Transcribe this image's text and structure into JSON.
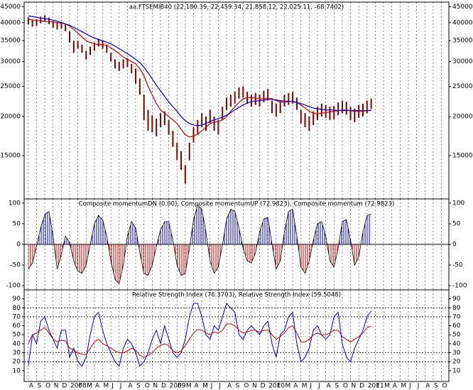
{
  "x_axis": {
    "xlim": [
      -0.5,
      50.9
    ],
    "xticks": [
      {
        "value": 0,
        "label": "A"
      },
      {
        "value": 1,
        "label": "S"
      },
      {
        "value": 2,
        "label": "O"
      },
      {
        "value": 3,
        "label": "N"
      },
      {
        "value": 4,
        "label": "D"
      },
      {
        "value": 5,
        "label": "2008"
      },
      {
        "value": 6,
        "label": "F"
      },
      {
        "value": 7,
        "label": "M"
      },
      {
        "value": 8,
        "label": "A"
      },
      {
        "value": 9,
        "label": "M"
      },
      {
        "value": 10,
        "label": "J"
      },
      {
        "value": 11,
        "label": "J"
      },
      {
        "value": 12,
        "label": "A"
      },
      {
        "value": 13,
        "label": "S"
      },
      {
        "value": 14,
        "label": "O"
      },
      {
        "value": 15,
        "label": "N"
      },
      {
        "value": 16,
        "label": "D"
      },
      {
        "value": 17,
        "label": "2009"
      },
      {
        "value": 18,
        "label": "F"
      },
      {
        "value": 19,
        "label": "M"
      },
      {
        "value": 20,
        "label": "A"
      },
      {
        "value": 21,
        "label": "M"
      },
      {
        "value": 22,
        "label": "J"
      },
      {
        "value": 23,
        "label": "J"
      },
      {
        "value": 24,
        "label": "A"
      },
      {
        "value": 25,
        "label": "S"
      },
      {
        "value": 26,
        "label": "O"
      },
      {
        "value": 27,
        "label": "N"
      },
      {
        "value": 28,
        "label": "D"
      },
      {
        "value": 29,
        "label": "2010"
      },
      {
        "value": 30,
        "label": "F"
      },
      {
        "value": 31,
        "label": "M"
      },
      {
        "value": 32,
        "label": "A"
      },
      {
        "value": 33,
        "label": "M"
      },
      {
        "value": 34,
        "label": "J"
      },
      {
        "value": 35,
        "label": "J"
      },
      {
        "value": 36,
        "label": "A"
      },
      {
        "value": 37,
        "label": "S"
      },
      {
        "value": 38,
        "label": "O"
      },
      {
        "value": 39,
        "label": "N"
      },
      {
        "value": 40,
        "label": "D"
      },
      {
        "value": 41,
        "label": "2011"
      },
      {
        "value": 42,
        "label": "F"
      },
      {
        "value": 43,
        "label": "M"
      },
      {
        "value": 44,
        "label": "A"
      },
      {
        "value": 45,
        "label": "M"
      },
      {
        "value": 46,
        "label": "J"
      },
      {
        "value": 47,
        "label": "J"
      },
      {
        "value": 48,
        "label": "A"
      },
      {
        "value": 49,
        "label": "S"
      },
      {
        "value": 50,
        "label": "O"
      }
    ],
    "x": [
      0,
      0.5,
      1,
      1.5,
      2,
      2.5,
      3,
      3.5,
      4,
      4.5,
      5,
      5.5,
      6,
      6.5,
      7,
      7.5,
      8,
      8.5,
      9,
      9.5,
      10,
      10.5,
      11,
      11.5,
      12,
      12.5,
      13,
      13.5,
      14,
      14.5,
      15,
      15.5,
      16,
      16.5,
      17,
      17.5,
      18,
      18.5,
      19,
      19.5,
      20,
      20.5,
      21,
      21.5,
      22,
      22.5,
      23,
      23.5,
      24,
      24.5,
      25,
      25.5,
      26,
      26.5,
      27,
      27.5,
      28,
      28.5,
      29,
      29.5,
      30,
      30.5,
      31,
      31.5,
      32,
      32.5,
      33,
      33.5,
      34,
      34.5,
      35,
      35.5,
      36,
      36.5,
      37,
      37.5,
      38,
      38.5,
      39,
      39.5,
      40,
      40.5,
      41,
      41.5
    ]
  },
  "chart_data": [
    {
      "type": "ohlc",
      "title": "aa.FTSEMIB40 (22,180.39, 22,459.34, 21,858.12, 22,025.11, -68.7402)",
      "log": true,
      "ylim": [
        10900,
        46500
      ],
      "yticks": [
        15000,
        20000,
        25000,
        30000,
        35000,
        40000,
        45000
      ],
      "color": "#800000",
      "high": [
        41500,
        40800,
        41000,
        41800,
        42200,
        41500,
        40500,
        40000,
        40200,
        39500,
        37500,
        35000,
        35000,
        34000,
        32500,
        33500,
        34500,
        35500,
        35000,
        34000,
        32000,
        30500,
        30000,
        30500,
        30800,
        29500,
        28500,
        26500,
        23500,
        21000,
        20200,
        19700,
        20500,
        20800,
        19500,
        18000,
        16500,
        15500,
        14000,
        16500,
        18500,
        19500,
        20500,
        20000,
        21000,
        20000,
        19500,
        21500,
        23000,
        23500,
        24000,
        24800,
        25000,
        24000,
        23500,
        23800,
        23500,
        24200,
        24500,
        22500,
        22000,
        22500,
        23500,
        23800,
        24000,
        23000,
        21000,
        20500,
        20000,
        20800,
        21500,
        22000,
        21800,
        21500,
        21600,
        22200,
        22500,
        22300,
        21500,
        21200,
        21800,
        22000,
        22500,
        22800
      ],
      "low": [
        39500,
        38800,
        39000,
        39800,
        40200,
        39500,
        38500,
        38000,
        38200,
        37500,
        34500,
        32000,
        33000,
        32000,
        30500,
        31500,
        32500,
        33500,
        33000,
        32000,
        30000,
        28500,
        28000,
        28500,
        28800,
        27500,
        25500,
        23500,
        19500,
        18000,
        17800,
        17300,
        18500,
        18800,
        17500,
        16000,
        14500,
        13500,
        12200,
        14500,
        16500,
        17500,
        18500,
        18000,
        19000,
        18000,
        17500,
        19500,
        21000,
        21500,
        22000,
        22800,
        23000,
        22000,
        21500,
        21800,
        21500,
        22200,
        22500,
        20500,
        20000,
        20500,
        21500,
        21800,
        22000,
        21000,
        19000,
        18500,
        18000,
        18800,
        19500,
        20000,
        19800,
        19500,
        19600,
        20200,
        20500,
        20300,
        19500,
        19200,
        19800,
        20000,
        20500,
        21200
      ],
      "overlays": [
        {
          "color": "#cc0000",
          "values": [
            41000,
            40800,
            40600,
            40500,
            40400,
            40300,
            40200,
            40000,
            39800,
            39600,
            39000,
            38000,
            37000,
            36000,
            35000,
            34500,
            34200,
            34000,
            34000,
            33800,
            33200,
            32500,
            31800,
            31000,
            30500,
            30000,
            29500,
            28500,
            27000,
            25000,
            23500,
            22000,
            21000,
            20500,
            20000,
            19500,
            19000,
            18200,
            17500,
            17200,
            17300,
            17600,
            18000,
            18500,
            19000,
            19200,
            19300,
            19500,
            20000,
            20800,
            21500,
            22200,
            22800,
            23000,
            23000,
            22900,
            22800,
            22800,
            22900,
            22800,
            22500,
            22300,
            22200,
            22300,
            22400,
            22200,
            21800,
            21300,
            20800,
            20500,
            20400,
            20500,
            20600,
            20700,
            20800,
            20900,
            21000,
            21000,
            20900,
            20800,
            20800,
            20800,
            20900,
            21000
          ]
        },
        {
          "color": "#0000cc",
          "values": [
            42000,
            41800,
            41600,
            41400,
            41200,
            41000,
            40700,
            40400,
            40000,
            39600,
            39200,
            38600,
            38000,
            37400,
            36800,
            36200,
            35700,
            35300,
            35000,
            34600,
            34200,
            33600,
            33000,
            32400,
            31800,
            31200,
            30500,
            29800,
            28800,
            27600,
            26400,
            25200,
            24200,
            23200,
            22300,
            21500,
            20800,
            20000,
            19400,
            19000,
            18800,
            18700,
            18800,
            19000,
            19300,
            19500,
            19700,
            19900,
            20200,
            20600,
            21000,
            21400,
            21800,
            22100,
            22300,
            22400,
            22500,
            22600,
            22700,
            22700,
            22600,
            22500,
            22400,
            22400,
            22300,
            22200,
            22000,
            21800,
            21500,
            21300,
            21200,
            21100,
            21000,
            21000,
            21000,
            20900,
            20900,
            20900,
            20900,
            20900,
            20900,
            20900,
            20900,
            20900
          ]
        }
      ]
    },
    {
      "type": "area",
      "title": "Composite momentumDN (0.00), Composite momentumUP (72.9823), Composite momentum (72.9823)",
      "ylim": [
        -110,
        110
      ],
      "yticks": [
        -100,
        -50,
        0,
        50,
        100
      ],
      "up_color": "#0000cc",
      "down_color": "#cc0000",
      "line_color": "#000000",
      "values": [
        -60,
        -45,
        -5,
        40,
        72,
        80,
        20,
        -60,
        -25,
        20,
        5,
        -40,
        -65,
        -70,
        -50,
        0,
        50,
        70,
        60,
        20,
        -40,
        -85,
        -95,
        -50,
        20,
        55,
        40,
        -20,
        -70,
        -75,
        -50,
        -5,
        35,
        55,
        55,
        10,
        -50,
        -75,
        -70,
        -10,
        60,
        95,
        85,
        30,
        -40,
        -70,
        -55,
        0,
        60,
        85,
        80,
        40,
        -10,
        -40,
        -45,
        -20,
        30,
        62,
        65,
        0,
        -60,
        -40,
        30,
        80,
        85,
        20,
        -55,
        -70,
        -40,
        10,
        50,
        55,
        20,
        -40,
        -55,
        -10,
        55,
        60,
        10,
        -50,
        -30,
        30,
        70,
        72.9823
      ]
    },
    {
      "type": "line",
      "title": "Relative Strength Index (76.3703), Relative Strength Index (59.5048)",
      "ylim": [
        -2,
        100
      ],
      "yticks": [
        10,
        20,
        30,
        40,
        50,
        60,
        70,
        80,
        90
      ],
      "levels": [
        20,
        30,
        70,
        80
      ],
      "series": [
        {
          "color": "#0000cc",
          "values": [
            15,
            50,
            40,
            65,
            70,
            55,
            45,
            35,
            55,
            55,
            25,
            35,
            20,
            15,
            25,
            50,
            70,
            75,
            55,
            40,
            30,
            20,
            15,
            35,
            45,
            40,
            30,
            15,
            20,
            30,
            45,
            55,
            40,
            60,
            45,
            30,
            25,
            30,
            45,
            70,
            85,
            85,
            70,
            50,
            45,
            60,
            55,
            70,
            85,
            80,
            75,
            50,
            45,
            55,
            60,
            55,
            50,
            60,
            65,
            40,
            25,
            50,
            55,
            70,
            75,
            40,
            20,
            25,
            35,
            55,
            60,
            50,
            45,
            50,
            70,
            75,
            40,
            25,
            20,
            35,
            45,
            55,
            70,
            76.3703
          ]
        },
        {
          "color": "#cc0000",
          "values": [
            40,
            50,
            52,
            55,
            58,
            52,
            45,
            42,
            44,
            43,
            35,
            33,
            30,
            28,
            28,
            35,
            42,
            45,
            40,
            38,
            35,
            32,
            30,
            30,
            32,
            35,
            33,
            27,
            25,
            27,
            30,
            35,
            38,
            40,
            38,
            32,
            30,
            32,
            38,
            45,
            52,
            56,
            55,
            52,
            50,
            53,
            52,
            55,
            62,
            62,
            60,
            55,
            52,
            53,
            55,
            55,
            53,
            55,
            55,
            50,
            45,
            48,
            52,
            58,
            60,
            52,
            42,
            42,
            45,
            50,
            52,
            50,
            50,
            52,
            55,
            55,
            48,
            45,
            42,
            45,
            48,
            52,
            58,
            59.5048
          ]
        }
      ]
    }
  ]
}
